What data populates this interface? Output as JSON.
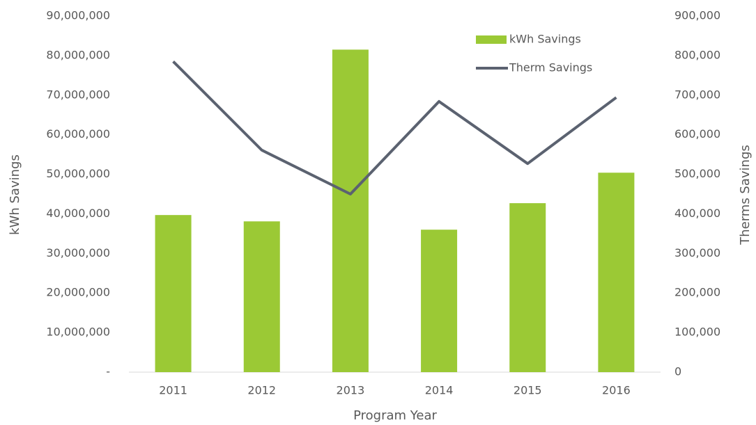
{
  "chart_data": {
    "type": "bar_line",
    "categories": [
      "2011",
      "2012",
      "2013",
      "2014",
      "2015",
      "2016"
    ],
    "series": [
      {
        "name": "kWh Savings",
        "type": "bar",
        "color": "#9bc935",
        "values": [
          39700000,
          38100000,
          81500000,
          36000000,
          42700000,
          50400000
        ]
      },
      {
        "name": "Therm Savings",
        "type": "line",
        "axis": "y2",
        "color": "#5b6270",
        "values": [
          785000,
          561000,
          450000,
          684000,
          527000,
          694000
        ]
      }
    ],
    "ylabel": "kWh Savings",
    "y2label": "Therms Savings",
    "xlabel": "Program Year",
    "ylim": [
      0,
      90000000
    ],
    "yticks": [
      {
        "value": 0,
        "label": "-"
      },
      {
        "value": 10000000,
        "label": "10,000,000"
      },
      {
        "value": 20000000,
        "label": "20,000,000"
      },
      {
        "value": 30000000,
        "label": "30,000,000"
      },
      {
        "value": 40000000,
        "label": "40,000,000"
      },
      {
        "value": 50000000,
        "label": "50,000,000"
      },
      {
        "value": 60000000,
        "label": "60,000,000"
      },
      {
        "value": 70000000,
        "label": "70,000,000"
      },
      {
        "value": 80000000,
        "label": "80,000,000"
      },
      {
        "value": 90000000,
        "label": "90,000,000"
      }
    ],
    "y2lim": [
      0,
      900000
    ],
    "y2ticks": [
      0,
      {
        "value": 100000,
        "label": "100,000"
      },
      {
        "value": 200000,
        "label": "200,000"
      },
      {
        "value": 300000,
        "label": "300,000"
      },
      {
        "value": 400000,
        "label": "400,000"
      },
      {
        "value": 500000,
        "label": "500,000"
      },
      {
        "value": 600000,
        "label": "600,000"
      },
      {
        "value": 700000,
        "label": "700,000"
      },
      {
        "value": 800000,
        "label": "800,000"
      },
      {
        "value": 900000,
        "label": "900,000"
      }
    ],
    "grid": false,
    "legend": "upper right"
  }
}
